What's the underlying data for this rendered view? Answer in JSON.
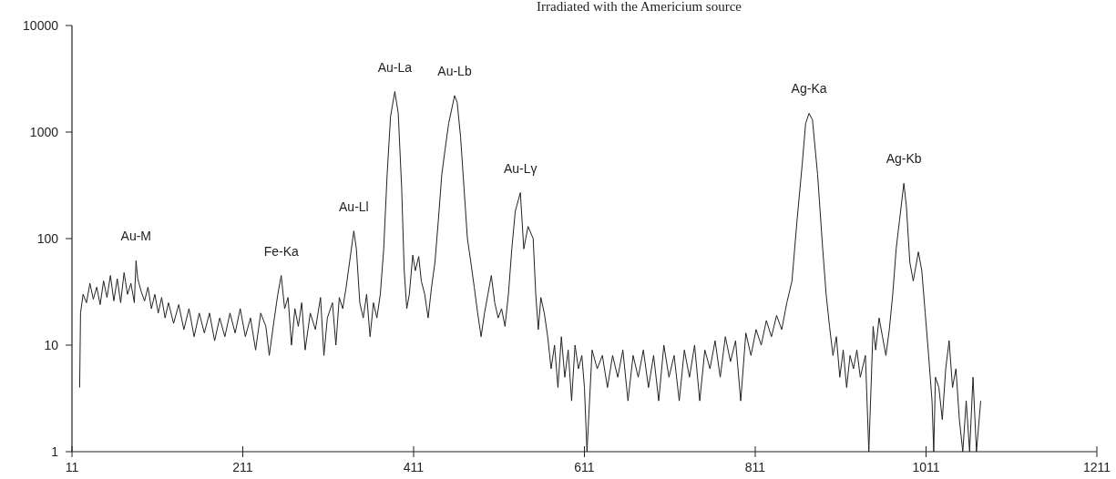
{
  "chart_data": {
    "type": "line",
    "title": "Irradiated with the Americium source",
    "log": "y",
    "xlim": [
      11,
      1211
    ],
    "xticks": [
      11,
      211,
      411,
      611,
      811,
      1011,
      1211
    ],
    "ylim": [
      1,
      10000
    ],
    "yticks": [
      1,
      10,
      100,
      1000,
      10000
    ],
    "grid": false,
    "marker": "none",
    "line_style": "solid",
    "annotations": [
      {
        "text": "Au-M",
        "x": 86,
        "y": 62
      },
      {
        "text": "Fe-Ka",
        "x": 256,
        "y": 45
      },
      {
        "text": "Au-Ll",
        "x": 341,
        "y": 118
      },
      {
        "text": "Au-La",
        "x": 389,
        "y": 2400
      },
      {
        "text": "Au-Lb",
        "x": 459,
        "y": 2200
      },
      {
        "text": "Au-Lγ",
        "x": 536,
        "y": 270
      },
      {
        "text": "Ag-Ka",
        "x": 874,
        "y": 1500
      },
      {
        "text": "Ag-Kb",
        "x": 985,
        "y": 330
      }
    ],
    "series": [
      {
        "color": "#222222",
        "x": [
          20,
          21,
          24,
          28,
          32,
          36,
          40,
          44,
          48,
          52,
          56,
          60,
          64,
          68,
          72,
          76,
          80,
          84,
          86,
          88,
          92,
          96,
          100,
          104,
          108,
          112,
          116,
          120,
          124,
          130,
          136,
          142,
          148,
          154,
          160,
          166,
          172,
          178,
          184,
          190,
          196,
          202,
          208,
          214,
          220,
          226,
          232,
          238,
          242,
          248,
          252,
          256,
          260,
          264,
          268,
          272,
          276,
          280,
          284,
          290,
          296,
          302,
          306,
          310,
          316,
          320,
          324,
          328,
          332,
          336,
          341,
          344,
          348,
          352,
          356,
          360,
          364,
          368,
          372,
          376,
          380,
          384,
          389,
          393,
          397,
          400,
          403,
          406,
          410,
          413,
          417,
          420,
          424,
          428,
          432,
          436,
          440,
          444,
          448,
          452,
          459,
          462,
          466,
          470,
          474,
          478,
          482,
          486,
          490,
          494,
          498,
          502,
          506,
          510,
          514,
          518,
          522,
          526,
          530,
          536,
          540,
          545,
          551,
          554,
          557,
          560,
          564,
          568,
          572,
          576,
          580,
          584,
          588,
          592,
          596,
          600,
          604,
          608,
          611,
          614,
          620,
          626,
          632,
          638,
          644,
          650,
          656,
          662,
          668,
          674,
          680,
          686,
          692,
          698,
          704,
          710,
          716,
          722,
          728,
          734,
          740,
          746,
          752,
          758,
          764,
          770,
          776,
          782,
          788,
          794,
          800,
          806,
          812,
          818,
          824,
          830,
          836,
          842,
          848,
          854,
          860,
          866,
          870,
          874,
          878,
          884,
          890,
          894,
          898,
          902,
          906,
          910,
          914,
          918,
          922,
          926,
          930,
          934,
          940,
          944,
          949,
          952,
          956,
          960,
          964,
          968,
          972,
          976,
          980,
          985,
          988,
          992,
          996,
          1002,
          1006,
          1010,
          1014,
          1018,
          1020,
          1022,
          1026,
          1030,
          1034,
          1038,
          1042,
          1046,
          1050,
          1054,
          1058,
          1062,
          1066,
          1070,
          1075
        ],
        "values": [
          4,
          20,
          30,
          25,
          38,
          27,
          35,
          24,
          40,
          28,
          45,
          26,
          42,
          25,
          48,
          30,
          38,
          25,
          62,
          42,
          32,
          26,
          35,
          22,
          30,
          20,
          28,
          18,
          25,
          16,
          24,
          14,
          22,
          12,
          20,
          13,
          20,
          11,
          18,
          12,
          20,
          13,
          22,
          12,
          18,
          9,
          20,
          15,
          8,
          18,
          30,
          45,
          22,
          28,
          10,
          22,
          15,
          25,
          9,
          20,
          14,
          28,
          8,
          18,
          25,
          10,
          28,
          22,
          35,
          60,
          118,
          80,
          25,
          18,
          30,
          12,
          25,
          18,
          30,
          80,
          400,
          1400,
          2400,
          1500,
          300,
          50,
          22,
          30,
          70,
          50,
          68,
          40,
          30,
          18,
          35,
          60,
          150,
          400,
          700,
          1200,
          2200,
          1900,
          900,
          300,
          100,
          60,
          35,
          20,
          12,
          20,
          30,
          45,
          25,
          18,
          22,
          15,
          30,
          80,
          180,
          270,
          80,
          130,
          100,
          30,
          14,
          28,
          20,
          12,
          6,
          10,
          4,
          12,
          5,
          9,
          3,
          10,
          6,
          8,
          4,
          1,
          9,
          6,
          8,
          4,
          8,
          5,
          9,
          3,
          8,
          5,
          9,
          4,
          8,
          3,
          10,
          5,
          8,
          3,
          9,
          5,
          10,
          3,
          9,
          6,
          11,
          5,
          12,
          7,
          11,
          3,
          13,
          8,
          14,
          10,
          17,
          12,
          19,
          14,
          25,
          40,
          150,
          500,
          1200,
          1500,
          1300,
          400,
          80,
          30,
          15,
          8,
          12,
          5,
          9,
          4,
          8,
          6,
          9,
          5,
          8,
          1,
          15,
          9,
          18,
          12,
          8,
          14,
          30,
          80,
          150,
          330,
          200,
          60,
          40,
          75,
          50,
          20,
          8,
          3,
          1,
          5,
          4,
          2,
          6,
          11,
          4,
          6,
          2,
          1,
          3,
          1,
          5,
          1,
          3
        ]
      }
    ]
  }
}
